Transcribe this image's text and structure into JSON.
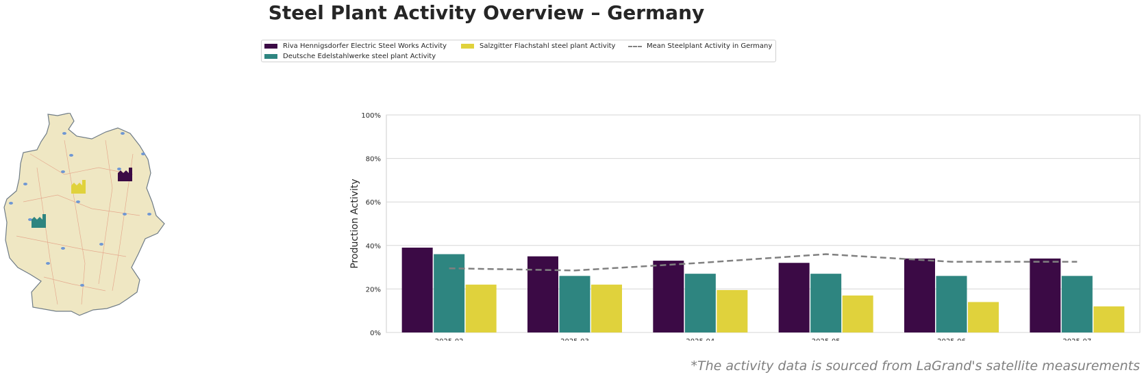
{
  "title": "Steel Plant Activity Overview – Germany",
  "footnote": "*The activity data is sourced from LaGrand's satellite measurements",
  "legend": {
    "items": [
      {
        "label": "Riva Hennigsdorfer Electric Steel Works Activity",
        "color": "#3b0a45",
        "kind": "bar"
      },
      {
        "label": "Deutsche Edelstahlwerke steel plant Activity",
        "color": "#2e8580",
        "kind": "bar"
      },
      {
        "label": "Salzgitter Flachstahl steel plant Activity",
        "color": "#e0d23c",
        "kind": "bar"
      },
      {
        "label": "Mean Steelplant Activity in Germany",
        "color": "#808080",
        "kind": "dashed-line"
      }
    ]
  },
  "map": {
    "plants": [
      {
        "icon": "factory-icon",
        "color": "#3b0a45"
      },
      {
        "icon": "factory-icon",
        "color": "#e0d23c"
      },
      {
        "icon": "factory-icon",
        "color": "#2e8580"
      }
    ]
  },
  "chart_data": {
    "type": "bar",
    "title": "",
    "xlabel": "",
    "ylabel": "Production Activity",
    "ylim": [
      0,
      100
    ],
    "yticks": [
      "0%",
      "20%",
      "40%",
      "60%",
      "80%",
      "100%"
    ],
    "grid": true,
    "legend_position": "top-center",
    "categories": [
      "2025-02",
      "2025-03",
      "2025-04",
      "2025-05",
      "2025-06",
      "2025-07"
    ],
    "series": [
      {
        "name": "Riva Hennigsdorfer Electric Steel Works Activity",
        "color": "#3b0a45",
        "values": [
          39,
          35,
          33,
          32,
          34,
          34
        ]
      },
      {
        "name": "Deutsche Edelstahlwerke steel plant Activity",
        "color": "#2e8580",
        "values": [
          36,
          26,
          27,
          27,
          26,
          26
        ]
      },
      {
        "name": "Salzgitter Flachstahl steel plant Activity",
        "color": "#e0d23c",
        "values": [
          22,
          22,
          19.5,
          17,
          14,
          12
        ]
      }
    ],
    "mean_line": {
      "name": "Mean Steelplant Activity in Germany",
      "color": "#808080",
      "style": "dashed",
      "values": [
        29.5,
        28.5,
        32,
        36,
        32.5,
        32.5
      ]
    }
  }
}
